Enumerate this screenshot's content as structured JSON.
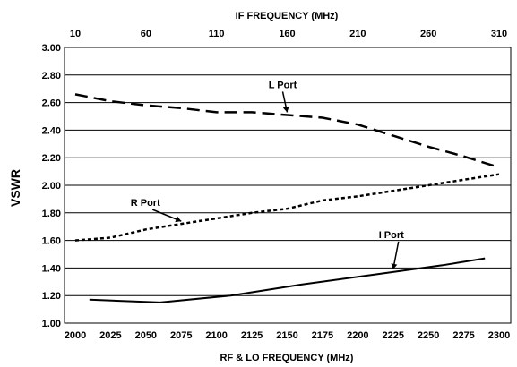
{
  "chart_data": {
    "type": "line",
    "title": "",
    "xlabel": "RF & LO FREQUENCY (MHz)",
    "x2label": "IF FREQUENCY (MHz)",
    "ylabel": "VSWR",
    "xlim": [
      2000,
      2300
    ],
    "ylim": [
      1.0,
      3.0
    ],
    "x_ticks": [
      "2000",
      "2025",
      "2050",
      "2075",
      "2100",
      "2125",
      "2150",
      "2175",
      "2200",
      "2225",
      "2250",
      "2275",
      "2300"
    ],
    "x2_ticks": [
      "10",
      "60",
      "110",
      "160",
      "210",
      "260",
      "310"
    ],
    "y_ticks": [
      "1.00",
      "1.20",
      "1.40",
      "1.60",
      "1.80",
      "2.00",
      "2.20",
      "2.40",
      "2.60",
      "2.80",
      "3.00"
    ],
    "grid": "horizontal",
    "series": [
      {
        "name": "L Port",
        "style": "dashed",
        "x": [
          2000,
          2025,
          2050,
          2075,
          2100,
          2125,
          2150,
          2175,
          2200,
          2225,
          2250,
          2275,
          2300
        ],
        "values": [
          2.66,
          2.61,
          2.58,
          2.56,
          2.53,
          2.53,
          2.51,
          2.49,
          2.44,
          2.36,
          2.28,
          2.21,
          2.13
        ]
      },
      {
        "name": "R Port",
        "style": "dotted",
        "x": [
          2000,
          2025,
          2050,
          2075,
          2100,
          2125,
          2150,
          2175,
          2200,
          2225,
          2250,
          2275,
          2300
        ],
        "values": [
          1.6,
          1.62,
          1.68,
          1.72,
          1.76,
          1.8,
          1.83,
          1.89,
          1.92,
          1.96,
          2.0,
          2.04,
          2.08
        ]
      },
      {
        "name": "I Port",
        "style": "solid",
        "x": [
          2010,
          2060,
          2110,
          2160,
          2210,
          2260,
          2290
        ],
        "values": [
          1.17,
          1.15,
          1.2,
          1.28,
          1.35,
          1.42,
          1.47
        ]
      }
    ],
    "annotations": [
      {
        "text": "L Port",
        "series": "L Port",
        "at_x": 2150
      },
      {
        "text": "R Port",
        "series": "R Port",
        "at_x": 2075
      },
      {
        "text": "I Port",
        "series": "I Port",
        "at_x": 2225
      }
    ]
  }
}
